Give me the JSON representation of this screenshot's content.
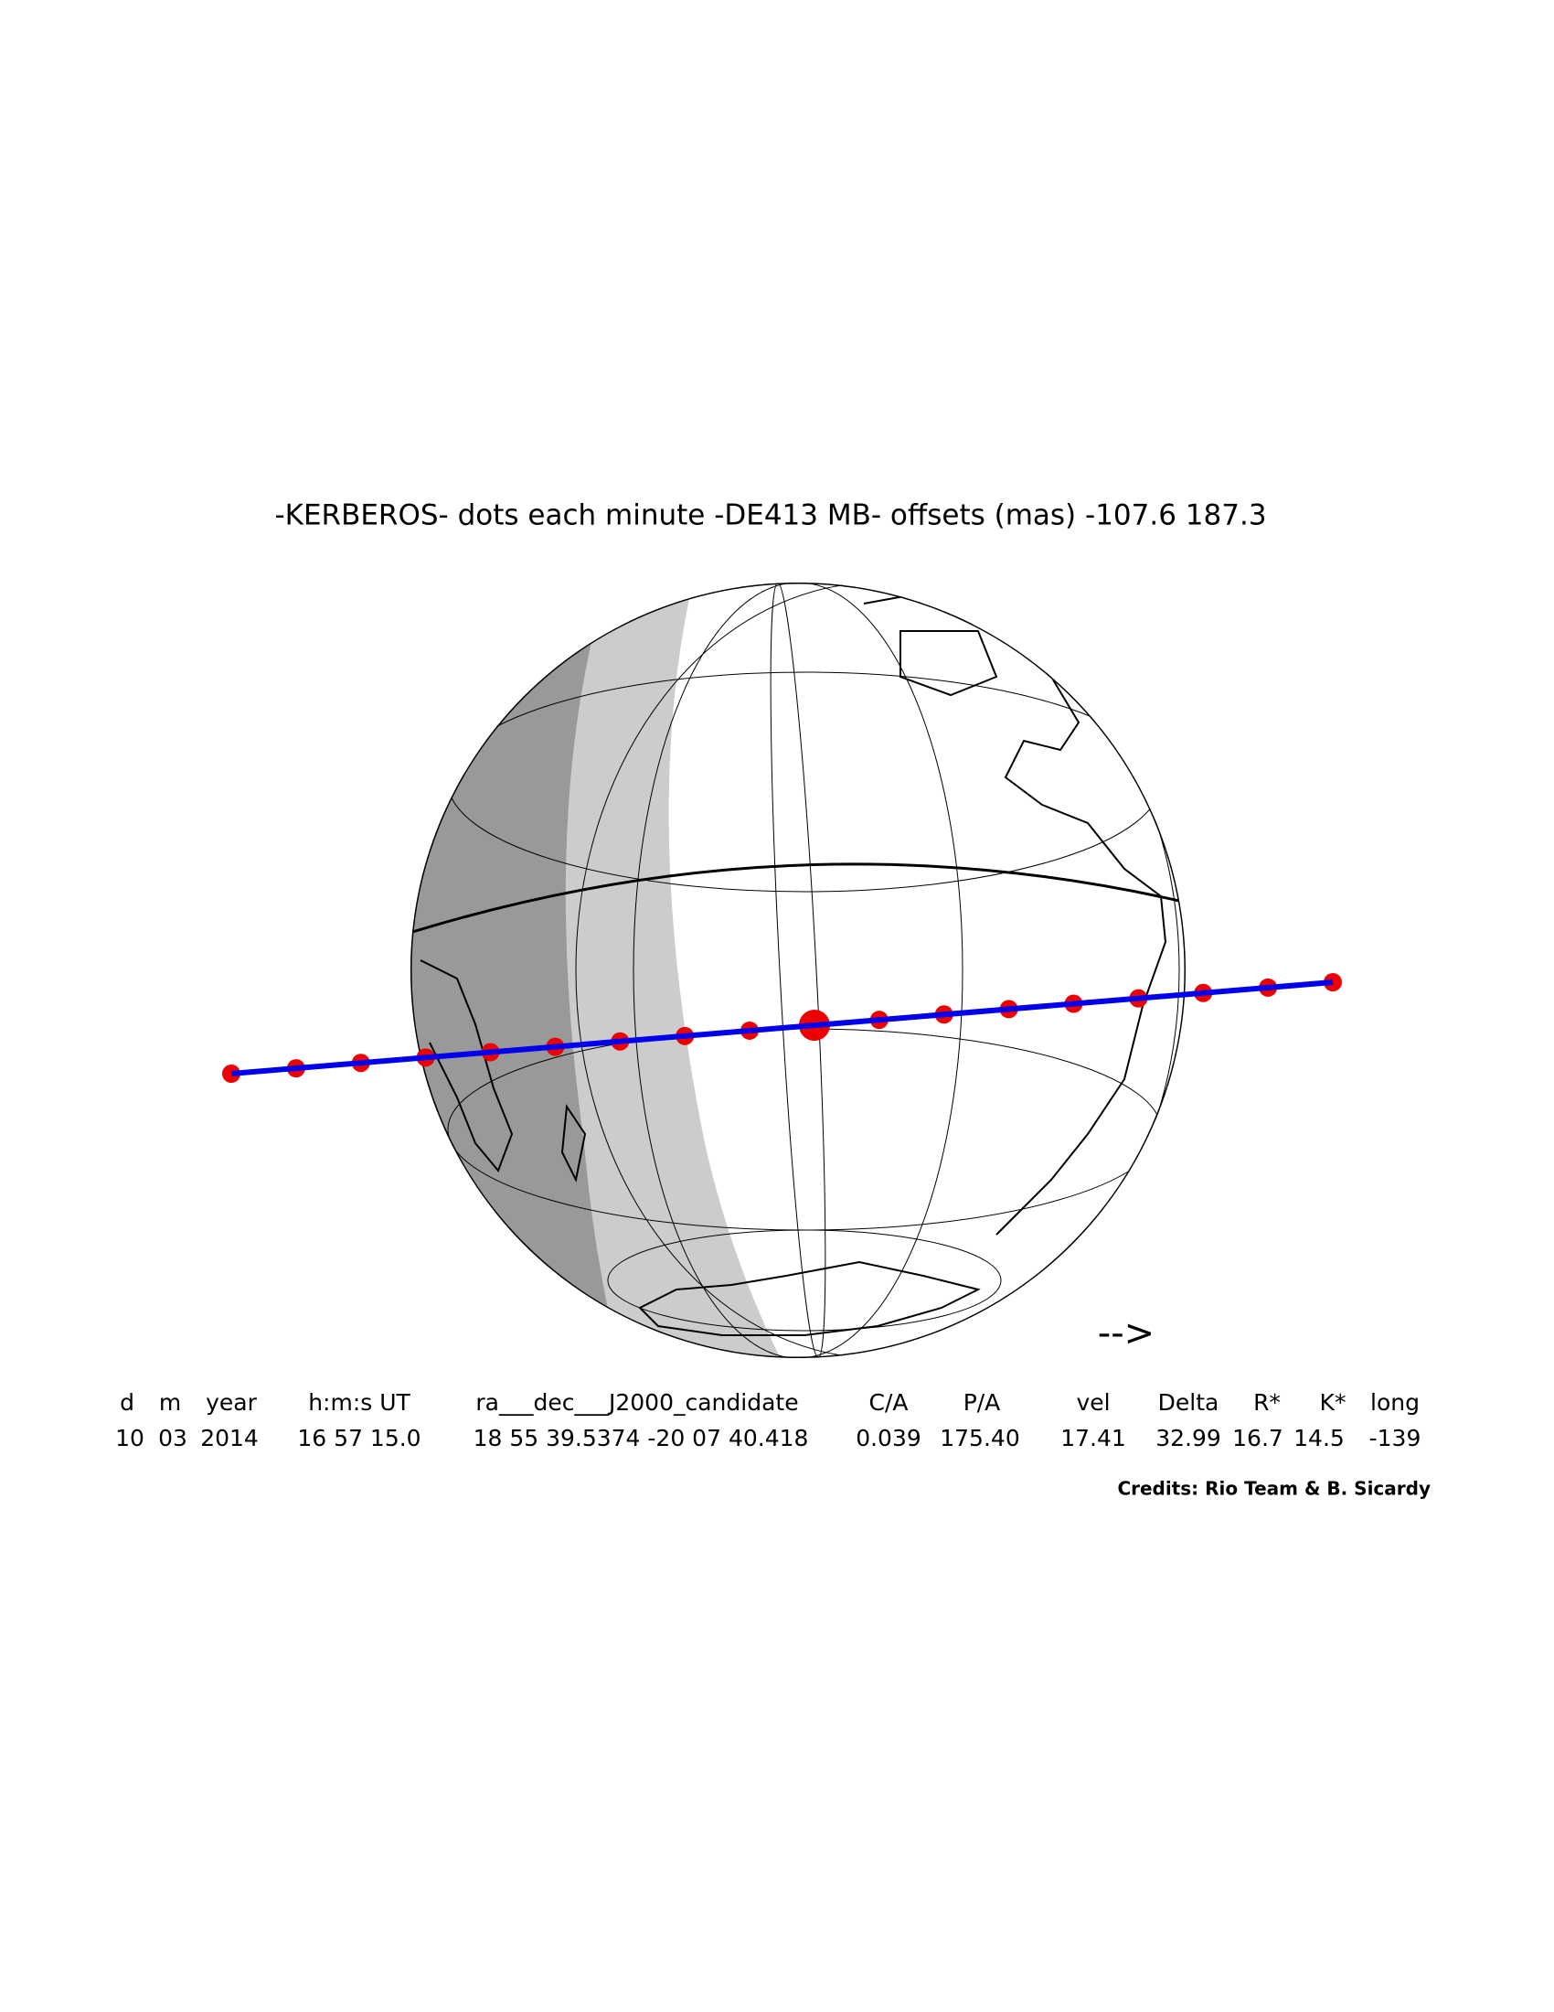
{
  "title": "-KERBEROS- dots each minute -DE413 MB- offsets (mas) -107.6  187.3",
  "table": {
    "headers": [
      "d",
      "m",
      "year",
      "h:m:s UT",
      "ra___dec___J2000_candidate",
      "C/A",
      "P/A",
      "vel",
      "Delta",
      "R*",
      "K*",
      "long"
    ],
    "values": [
      "10",
      "03",
      "2014",
      "16 57 15.0",
      "18 55 39.5374 -20 07 40.418",
      "0.039",
      "175.40",
      "17.41",
      "32.99",
      "16.7",
      "14.5",
      "-139"
    ]
  },
  "direction_arrow": "-->",
  "credits": "Credits: Rio Team & B. Sicardy"
}
